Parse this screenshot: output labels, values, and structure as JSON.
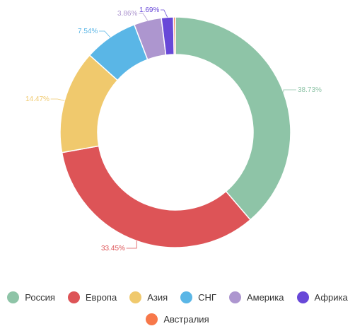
{
  "chart_data": {
    "type": "pie",
    "donut": true,
    "title": "",
    "legend_position": "bottom",
    "series": [
      {
        "name": "Россия",
        "value": 38.73,
        "label": "38.73%",
        "color": "#8ec4a7"
      },
      {
        "name": "Европа",
        "value": 33.45,
        "label": "33.45%",
        "color": "#dd5457"
      },
      {
        "name": "Азия",
        "value": 14.47,
        "label": "14.47%",
        "color": "#f0c96d"
      },
      {
        "name": "СНГ",
        "value": 7.54,
        "label": "7.54%",
        "color": "#5ab6e6"
      },
      {
        "name": "Америка",
        "value": 3.86,
        "label": "3.86%",
        "color": "#ad96cf"
      },
      {
        "name": "Африка",
        "value": 1.69,
        "label": "1.69%",
        "color": "#6848d8"
      },
      {
        "name": "Австралия",
        "value": 0.26,
        "label": "",
        "color": "#f7784a"
      }
    ]
  }
}
